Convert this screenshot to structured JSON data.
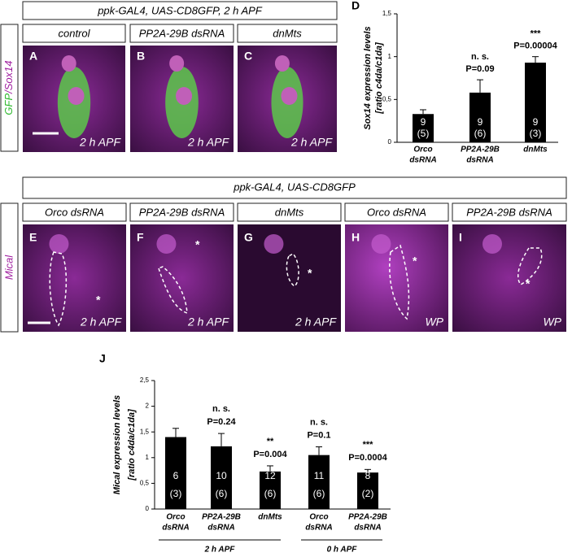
{
  "top_header": "ppk-GAL4, UAS-CD8GFP, 2 h APF",
  "top_row_label": {
    "gfp": "GFP",
    "sox": "/Sox14"
  },
  "top_panels": [
    {
      "condition": "control",
      "letter": "A",
      "stage": "2 h APF"
    },
    {
      "condition": "PP2A-29B dsRNA",
      "letter": "B",
      "stage": "2 h APF"
    },
    {
      "condition": "dnMts",
      "letter": "C",
      "stage": "2 h APF"
    }
  ],
  "middle_header": "ppk-GAL4, UAS-CD8GFP",
  "middle_row_label": "Mical",
  "middle_panels": [
    {
      "condition": "Orco dsRNA",
      "letter": "E",
      "stage": "2 h APF",
      "marker": "*"
    },
    {
      "condition": "PP2A-29B dsRNA",
      "letter": "F",
      "stage": "2 h APF",
      "marker": "*"
    },
    {
      "condition": "dnMts",
      "letter": "G",
      "stage": "2 h APF",
      "marker": "*"
    },
    {
      "condition": "Orco dsRNA",
      "letter": "H",
      "stage": "WP",
      "marker": "*"
    },
    {
      "condition": "PP2A-29B dsRNA",
      "letter": "I",
      "stage": "WP",
      "marker": "*"
    }
  ],
  "chart_data": [
    {
      "type": "bar",
      "letter": "D",
      "y_label": [
        "Sox14 expression levels",
        "[ratio c4da/c1da]"
      ],
      "categories": [
        [
          "Orco",
          "dsRNA"
        ],
        [
          "PP2A-29B",
          "dsRNA"
        ],
        [
          "dnMts"
        ]
      ],
      "values": [
        0.33,
        0.58,
        0.93
      ],
      "errors": [
        0.05,
        0.15,
        0.07
      ],
      "n_labels": [
        "9",
        "9",
        "9"
      ],
      "larvae_labels": [
        "(5)",
        "(6)",
        "(3)"
      ],
      "annotations": [
        null,
        [
          "n. s.",
          "P=0.09"
        ],
        [
          "***",
          "P=0.00004"
        ]
      ],
      "color": "#000000",
      "ylim": [
        0,
        1.5
      ],
      "yticks": [
        0,
        {
          "value": 0.5,
          "label": "0,5"
        },
        1,
        {
          "value": 1.5,
          "label": "1,5"
        }
      ]
    },
    {
      "type": "bar",
      "letter": "J",
      "y_label": [
        "Mical expression levels",
        "[ratio c4da/c1da]"
      ],
      "categories": [
        [
          "Orco",
          "dsRNA"
        ],
        [
          "PP2A-29B",
          "dsRNA"
        ],
        [
          "dnMts"
        ],
        [
          "Orco",
          "dsRNA"
        ],
        [
          "PP2A-29B",
          "dsRNA"
        ]
      ],
      "values": [
        1.4,
        1.22,
        0.73,
        1.05,
        0.71
      ],
      "errors": [
        0.17,
        0.25,
        0.11,
        0.16,
        0.06
      ],
      "n_labels": [
        "6",
        "10",
        "12",
        "11",
        "8"
      ],
      "larvae_labels": [
        "(3)",
        "(6)",
        "(6)",
        "(6)",
        "(2)"
      ],
      "annotations": [
        null,
        [
          "n. s.",
          "P=0.24"
        ],
        [
          "**",
          "P=0.004"
        ],
        [
          "n. s.",
          "P=0.1"
        ],
        [
          "***",
          "P=0.0004"
        ]
      ],
      "groups": [
        "2 h APF",
        "0 h APF"
      ],
      "color": "#000000",
      "ylim": [
        0,
        2.5
      ],
      "yticks": [
        0,
        {
          "value": 0.5,
          "label": "0,5"
        },
        1,
        {
          "value": 1.5,
          "label": "1,5"
        },
        2,
        {
          "value": 2.5,
          "label": "2,5"
        }
      ]
    }
  ]
}
